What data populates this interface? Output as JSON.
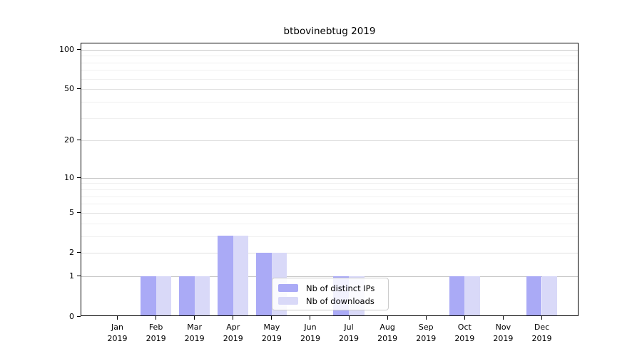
{
  "chart_data": {
    "type": "bar",
    "title": "btbovinebtug 2019",
    "months": [
      "Jan",
      "Feb",
      "Mar",
      "Apr",
      "May",
      "Jun",
      "Jul",
      "Aug",
      "Sep",
      "Oct",
      "Nov",
      "Dec"
    ],
    "year": "2019",
    "categories": [
      "Jan 2019",
      "Feb 2019",
      "Mar 2019",
      "Apr 2019",
      "May 2019",
      "Jun 2019",
      "Jul 2019",
      "Aug 2019",
      "Sep 2019",
      "Oct 2019",
      "Nov 2019",
      "Dec 2019"
    ],
    "series": [
      {
        "name": "Nb of distinct IPs",
        "color": "#aaaaf6",
        "values": [
          0,
          1,
          1,
          3,
          2,
          0,
          1,
          0,
          0,
          1,
          0,
          1
        ]
      },
      {
        "name": "Nb of downloads",
        "color": "#d9d9f8",
        "values": [
          0,
          1,
          1,
          3,
          2,
          0,
          1,
          0,
          0,
          1,
          0,
          1
        ]
      }
    ],
    "xlabel": "",
    "ylabel": "",
    "y_ticks": [
      0,
      1,
      2,
      5,
      10,
      20,
      50,
      100
    ],
    "y_minor_ticks": [
      3,
      4,
      6,
      7,
      8,
      9,
      30,
      40,
      60,
      70,
      80,
      90
    ],
    "scale": "log1p",
    "ylim": [
      0,
      112
    ],
    "grid": true,
    "legend_position": "lower center"
  },
  "colors": {
    "grid_decade": "#c8c8c8",
    "grid_labeled": "#e0e0e0",
    "grid_minor": "#f0f0f0",
    "spine": "#000000",
    "text": "#000000",
    "legend_border": "#cccccc"
  }
}
